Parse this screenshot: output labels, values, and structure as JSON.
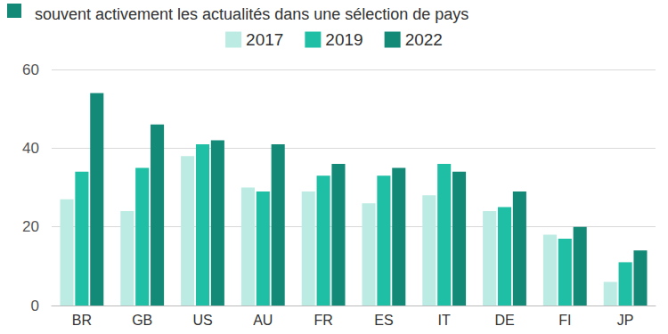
{
  "chart_data": {
    "type": "bar",
    "subtitle": "souvent activement les actualités dans une sélection de pays",
    "categories": [
      "BR",
      "GB",
      "US",
      "AU",
      "FR",
      "ES",
      "IT",
      "DE",
      "FI",
      "JP"
    ],
    "series": [
      {
        "name": "2017",
        "color": "#bcebe3",
        "values": [
          27,
          24,
          38,
          30,
          29,
          26,
          28,
          24,
          18,
          6
        ]
      },
      {
        "name": "2019",
        "color": "#1fbfa6",
        "values": [
          34,
          35,
          41,
          29,
          33,
          33,
          36,
          25,
          17,
          11
        ]
      },
      {
        "name": "2022",
        "color": "#138a78",
        "values": [
          54,
          46,
          42,
          41,
          36,
          35,
          34,
          29,
          20,
          14
        ]
      }
    ],
    "ylim": [
      0,
      60
    ],
    "yticks": [
      0,
      20,
      40,
      60
    ],
    "grid": true,
    "legend": "top"
  }
}
